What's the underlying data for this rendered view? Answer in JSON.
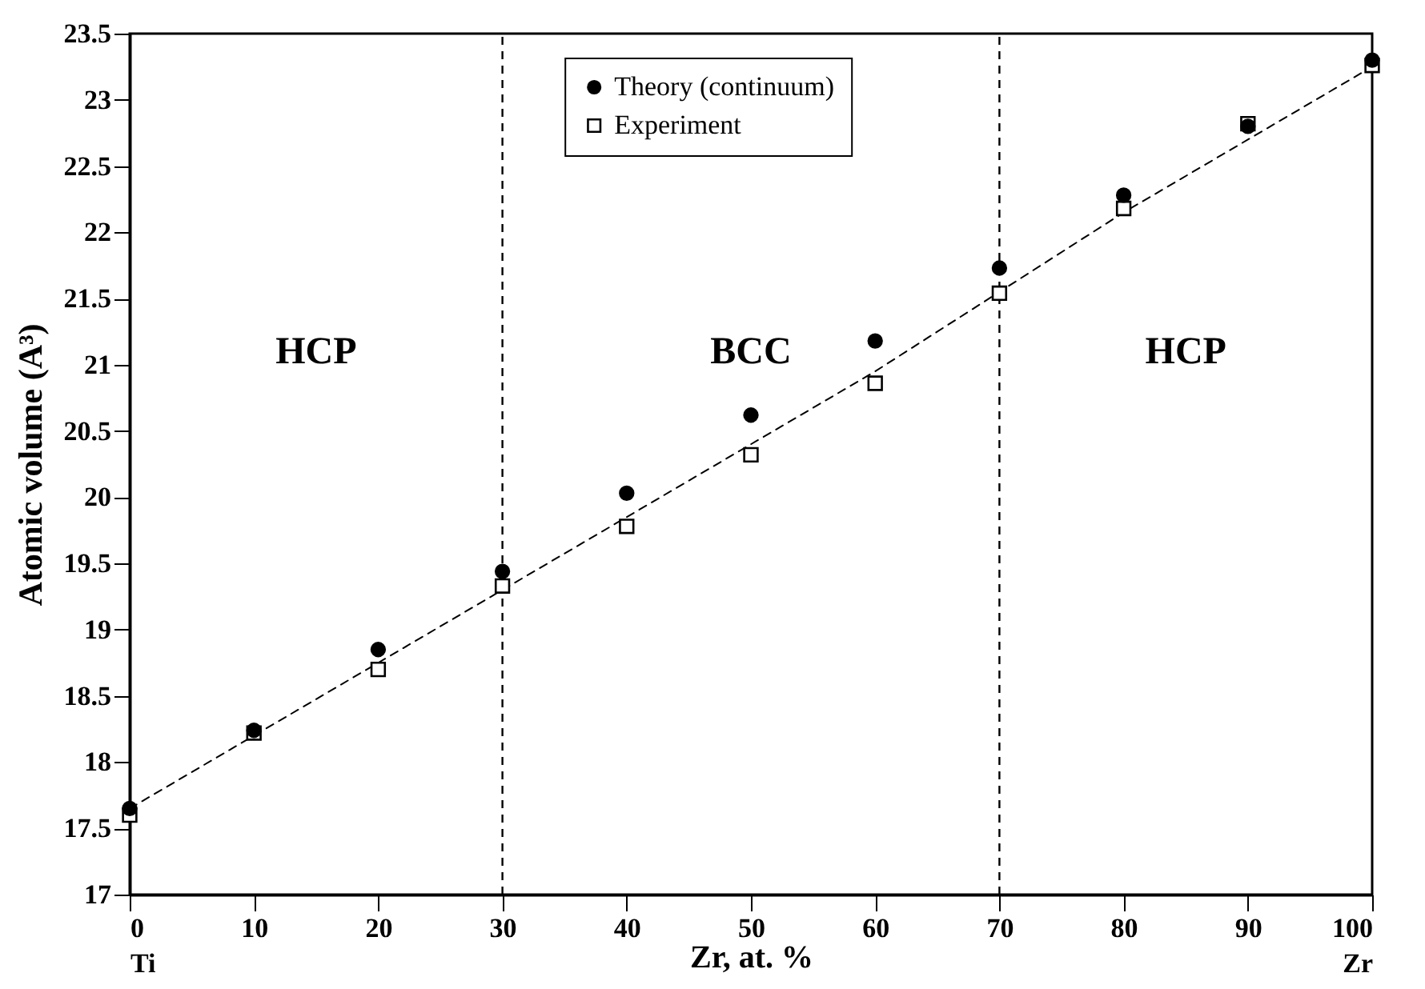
{
  "chart_data": {
    "type": "scatter",
    "xlabel": "Zr, at. %",
    "ylabel": "Atomic volume (A³)",
    "xlim": [
      0,
      100
    ],
    "ylim": [
      17,
      23.5
    ],
    "xticks": [
      {
        "value": 0,
        "label": "0\nTi"
      },
      10,
      20,
      30,
      40,
      50,
      60,
      70,
      80,
      90,
      {
        "value": 100,
        "label": "100\nZr"
      }
    ],
    "yticks": [
      17,
      17.5,
      18,
      18.5,
      19,
      19.5,
      20,
      20.5,
      21,
      21.5,
      22,
      22.5,
      23,
      23.5
    ],
    "x": [
      0,
      10,
      20,
      30,
      40,
      50,
      60,
      70,
      80,
      90,
      100
    ],
    "series": [
      {
        "name": "Theory (continuum)",
        "color": "#000000",
        "marker": "circle",
        "values": [
          17.65,
          18.24,
          18.85,
          19.44,
          20.03,
          20.62,
          21.18,
          21.73,
          22.28,
          22.8,
          23.3
        ]
      },
      {
        "name": "Experiment",
        "color": "#000000",
        "marker": "square",
        "values": [
          17.6,
          18.22,
          18.7,
          19.33,
          19.78,
          20.32,
          20.86,
          21.54,
          22.18,
          22.82,
          23.26
        ]
      },
      {
        "type": "line",
        "color": "#000000",
        "line_style": "dashed",
        "x": [
          0,
          10,
          20,
          30,
          40,
          50,
          60,
          70,
          80,
          90,
          100
        ],
        "values": [
          17.65,
          18.2,
          18.75,
          19.3,
          19.85,
          20.4,
          20.95,
          21.55,
          22.15,
          22.7,
          23.25
        ]
      }
    ],
    "ref_lines": [
      {
        "axis": "x",
        "value": 30,
        "color": "#000000",
        "line_style": "dashed"
      },
      {
        "axis": "x",
        "value": 70,
        "color": "#000000",
        "line_style": "dashed"
      }
    ],
    "annotations": [
      "HCP",
      "BCC",
      "HCP"
    ],
    "legend": "top",
    "grid": false
  }
}
